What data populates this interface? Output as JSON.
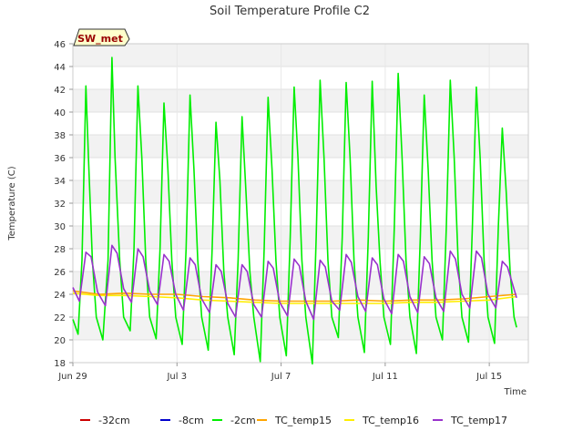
{
  "chart_data": {
    "type": "line",
    "title": "Soil Temperature Profile C2",
    "badge": "SW_met",
    "xlabel": "Time",
    "ylabel": "Temperature (C)",
    "ylim": [
      18,
      46
    ],
    "yticks": [
      18,
      20,
      22,
      24,
      26,
      28,
      30,
      32,
      34,
      36,
      38,
      40,
      42,
      44,
      46
    ],
    "x_range_days": [
      0,
      17.5
    ],
    "x_ticks": [
      {
        "day": 0,
        "label": "Jun 29"
      },
      {
        "day": 4,
        "label": "Jul 3"
      },
      {
        "day": 8,
        "label": "Jul 7"
      },
      {
        "day": 12,
        "label": "Jul 11"
      },
      {
        "day": 16,
        "label": "Jul 15"
      }
    ],
    "grid": true,
    "legend_position": "bottom",
    "series": [
      {
        "name": "-32cm",
        "color": "#cc0000",
        "values": []
      },
      {
        "name": "-8cm",
        "color": "#0000cc",
        "values": []
      },
      {
        "name": "-2cm",
        "color": "#00ee00",
        "values": [
          [
            0.0,
            21.8
          ],
          [
            0.2,
            20.5
          ],
          [
            0.35,
            27
          ],
          [
            0.5,
            42.3
          ],
          [
            0.6,
            36
          ],
          [
            0.75,
            27
          ],
          [
            0.9,
            22
          ],
          [
            1.15,
            20
          ],
          [
            1.35,
            27
          ],
          [
            1.5,
            44.8
          ],
          [
            1.62,
            36
          ],
          [
            1.8,
            27
          ],
          [
            1.95,
            22
          ],
          [
            2.2,
            20.8
          ],
          [
            2.35,
            28
          ],
          [
            2.5,
            42.3
          ],
          [
            2.65,
            36
          ],
          [
            2.8,
            27
          ],
          [
            2.95,
            22
          ],
          [
            3.2,
            20.1
          ],
          [
            3.35,
            28
          ],
          [
            3.5,
            40.8
          ],
          [
            3.65,
            35
          ],
          [
            3.8,
            27
          ],
          [
            3.95,
            22
          ],
          [
            4.2,
            19.6
          ],
          [
            4.35,
            28
          ],
          [
            4.5,
            41.5
          ],
          [
            4.65,
            35
          ],
          [
            4.8,
            27
          ],
          [
            4.95,
            22
          ],
          [
            5.2,
            19.1
          ],
          [
            5.35,
            28
          ],
          [
            5.5,
            39.1
          ],
          [
            5.65,
            34
          ],
          [
            5.8,
            26
          ],
          [
            5.95,
            22
          ],
          [
            6.2,
            18.7
          ],
          [
            6.35,
            27
          ],
          [
            6.5,
            39.6
          ],
          [
            6.65,
            33
          ],
          [
            6.8,
            26
          ],
          [
            6.95,
            22
          ],
          [
            7.2,
            18.1
          ],
          [
            7.35,
            28
          ],
          [
            7.5,
            41.3
          ],
          [
            7.65,
            35
          ],
          [
            7.8,
            27
          ],
          [
            7.95,
            22
          ],
          [
            8.2,
            18.6
          ],
          [
            8.35,
            29
          ],
          [
            8.5,
            42.2
          ],
          [
            8.65,
            36
          ],
          [
            8.8,
            27
          ],
          [
            8.95,
            22
          ],
          [
            9.2,
            17.9
          ],
          [
            9.35,
            29
          ],
          [
            9.5,
            42.8
          ],
          [
            9.65,
            36
          ],
          [
            9.8,
            27
          ],
          [
            9.95,
            22
          ],
          [
            10.2,
            20.2
          ],
          [
            10.35,
            29
          ],
          [
            10.5,
            42.6
          ],
          [
            10.65,
            36
          ],
          [
            10.8,
            27
          ],
          [
            10.95,
            22
          ],
          [
            11.2,
            18.9
          ],
          [
            11.35,
            29
          ],
          [
            11.5,
            42.7
          ],
          [
            11.65,
            33.5
          ],
          [
            11.8,
            27
          ],
          [
            11.95,
            22
          ],
          [
            12.2,
            19.6
          ],
          [
            12.35,
            30
          ],
          [
            12.5,
            43.4
          ],
          [
            12.65,
            36
          ],
          [
            12.8,
            27
          ],
          [
            12.95,
            22
          ],
          [
            13.2,
            18.8
          ],
          [
            13.35,
            29
          ],
          [
            13.5,
            41.5
          ],
          [
            13.65,
            35
          ],
          [
            13.8,
            27
          ],
          [
            13.95,
            22
          ],
          [
            14.2,
            20
          ],
          [
            14.35,
            30
          ],
          [
            14.5,
            42.8
          ],
          [
            14.65,
            36
          ],
          [
            14.8,
            27
          ],
          [
            14.95,
            22
          ],
          [
            15.2,
            19.8
          ],
          [
            15.35,
            30
          ],
          [
            15.5,
            42.2
          ],
          [
            15.65,
            36
          ],
          [
            15.8,
            27
          ],
          [
            15.95,
            22
          ],
          [
            16.2,
            19.7
          ],
          [
            16.35,
            30
          ],
          [
            16.5,
            38.6
          ],
          [
            16.65,
            33
          ],
          [
            16.8,
            26
          ],
          [
            16.95,
            22
          ],
          [
            17.05,
            21.1
          ]
        ]
      },
      {
        "name": "TC_temp15",
        "color": "#ffa500",
        "values": [
          [
            0.0,
            24.3
          ],
          [
            1.0,
            24.0
          ],
          [
            2.0,
            24.1
          ],
          [
            3.0,
            24.0
          ],
          [
            4.0,
            24.0
          ],
          [
            5.0,
            23.8
          ],
          [
            6.0,
            23.7
          ],
          [
            7.0,
            23.5
          ],
          [
            8.0,
            23.4
          ],
          [
            9.0,
            23.4
          ],
          [
            10.0,
            23.4
          ],
          [
            11.0,
            23.5
          ],
          [
            12.0,
            23.4
          ],
          [
            13.0,
            23.5
          ],
          [
            14.0,
            23.5
          ],
          [
            15.0,
            23.6
          ],
          [
            16.0,
            23.8
          ],
          [
            17.05,
            24.0
          ]
        ]
      },
      {
        "name": "TC_temp16",
        "color": "#ffee00",
        "values": [
          [
            0.0,
            24.1
          ],
          [
            1.0,
            23.9
          ],
          [
            2.0,
            23.9
          ],
          [
            3.0,
            23.8
          ],
          [
            4.0,
            23.7
          ],
          [
            5.0,
            23.5
          ],
          [
            6.0,
            23.4
          ],
          [
            7.0,
            23.3
          ],
          [
            8.0,
            23.2
          ],
          [
            9.0,
            23.2
          ],
          [
            10.0,
            23.2
          ],
          [
            11.0,
            23.2
          ],
          [
            12.0,
            23.2
          ],
          [
            13.0,
            23.3
          ],
          [
            14.0,
            23.3
          ],
          [
            15.0,
            23.4
          ],
          [
            16.0,
            23.5
          ],
          [
            17.05,
            23.8
          ]
        ]
      },
      {
        "name": "TC_temp17",
        "color": "#9933cc",
        "values": [
          [
            0.0,
            24.6
          ],
          [
            0.25,
            23.4
          ],
          [
            0.5,
            27.7
          ],
          [
            0.7,
            27.3
          ],
          [
            0.95,
            24.2
          ],
          [
            1.25,
            23.0
          ],
          [
            1.5,
            28.3
          ],
          [
            1.7,
            27.6
          ],
          [
            1.95,
            24.5
          ],
          [
            2.25,
            23.3
          ],
          [
            2.5,
            28.0
          ],
          [
            2.7,
            27.3
          ],
          [
            2.95,
            24.3
          ],
          [
            3.25,
            23.1
          ],
          [
            3.5,
            27.5
          ],
          [
            3.7,
            26.9
          ],
          [
            3.95,
            24.0
          ],
          [
            4.25,
            22.6
          ],
          [
            4.5,
            27.2
          ],
          [
            4.7,
            26.6
          ],
          [
            4.95,
            23.6
          ],
          [
            5.25,
            22.4
          ],
          [
            5.5,
            26.6
          ],
          [
            5.7,
            26.0
          ],
          [
            5.95,
            23.2
          ],
          [
            6.25,
            22.0
          ],
          [
            6.5,
            26.6
          ],
          [
            6.7,
            26.0
          ],
          [
            6.95,
            23.1
          ],
          [
            7.25,
            22.0
          ],
          [
            7.5,
            26.9
          ],
          [
            7.7,
            26.3
          ],
          [
            7.95,
            23.3
          ],
          [
            8.25,
            22.1
          ],
          [
            8.5,
            27.1
          ],
          [
            8.7,
            26.5
          ],
          [
            8.95,
            23.4
          ],
          [
            9.25,
            21.8
          ],
          [
            9.5,
            27.0
          ],
          [
            9.7,
            26.4
          ],
          [
            9.95,
            23.4
          ],
          [
            10.25,
            22.6
          ],
          [
            10.5,
            27.5
          ],
          [
            10.7,
            26.8
          ],
          [
            10.95,
            23.8
          ],
          [
            11.25,
            22.5
          ],
          [
            11.5,
            27.2
          ],
          [
            11.7,
            26.6
          ],
          [
            11.95,
            23.6
          ],
          [
            12.25,
            22.3
          ],
          [
            12.5,
            27.5
          ],
          [
            12.7,
            26.9
          ],
          [
            12.95,
            23.8
          ],
          [
            13.25,
            22.4
          ],
          [
            13.5,
            27.3
          ],
          [
            13.7,
            26.7
          ],
          [
            13.95,
            23.7
          ],
          [
            14.25,
            22.5
          ],
          [
            14.5,
            27.8
          ],
          [
            14.7,
            27.1
          ],
          [
            14.95,
            24.0
          ],
          [
            15.25,
            22.8
          ],
          [
            15.5,
            27.8
          ],
          [
            15.7,
            27.2
          ],
          [
            15.95,
            24.0
          ],
          [
            16.25,
            22.8
          ],
          [
            16.5,
            26.9
          ],
          [
            16.7,
            26.4
          ],
          [
            17.05,
            23.7
          ]
        ]
      }
    ]
  }
}
